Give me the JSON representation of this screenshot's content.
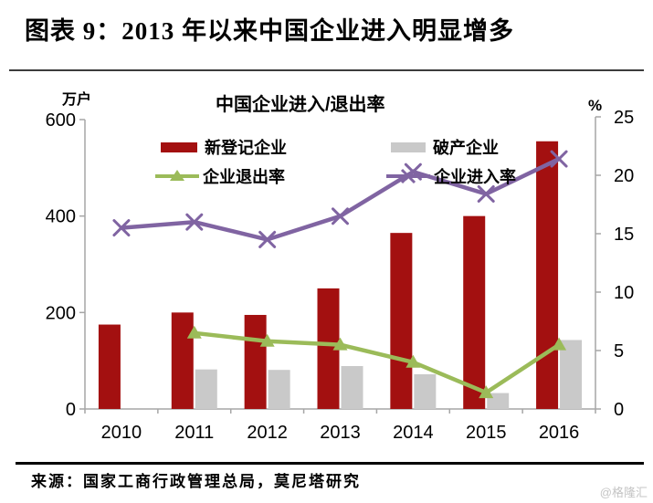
{
  "header": {
    "title": "图表 9：2013 年以来中国企业进入明显增多"
  },
  "chart_data": {
    "type": "bar+line",
    "title": "中国企业进入/退出率",
    "categories": [
      "2010",
      "2011",
      "2012",
      "2013",
      "2014",
      "2015",
      "2016"
    ],
    "left_axis": {
      "label": "万户",
      "ticks": [
        0,
        200,
        400,
        600
      ],
      "range": [
        0,
        600
      ]
    },
    "right_axis": {
      "label": "%",
      "ticks": [
        0,
        5,
        10,
        15,
        20,
        25
      ],
      "range": [
        0,
        25
      ]
    },
    "grid": "off",
    "legend_position": "top-center-two-columns",
    "colors": {
      "bar_red": "#A31010",
      "bar_gray": "#C9C9C9",
      "line_green": "#9BBB59",
      "line_purple": "#8064A2",
      "axis": "#A6A6A6",
      "text": "#000000"
    },
    "series": [
      {
        "id": "registered",
        "name": "新登记企业",
        "kind": "bar",
        "axis": "left",
        "color": "bar_red",
        "values": [
          175,
          200,
          195,
          250,
          365,
          400,
          555
        ]
      },
      {
        "id": "bankrupt",
        "name": "破产企业",
        "kind": "bar",
        "axis": "left",
        "color": "bar_gray",
        "values": [
          null,
          82,
          81,
          89,
          72,
          33,
          143
        ]
      },
      {
        "id": "exit-rate",
        "name": "企业退出率",
        "kind": "line",
        "axis": "right",
        "color": "line_green",
        "marker": "triangle",
        "values": [
          null,
          6.5,
          5.8,
          5.5,
          4.0,
          1.4,
          5.5
        ]
      },
      {
        "id": "entry-rate",
        "name": "企业进入率",
        "kind": "line",
        "axis": "right",
        "color": "line_purple",
        "marker": "x",
        "values": [
          15.5,
          16.0,
          14.5,
          16.5,
          20.3,
          18.4,
          21.4
        ]
      }
    ]
  },
  "footer": {
    "source": "来源：国家工商行政管理总局，莫尼塔研究",
    "watermark": "@格隆汇"
  }
}
